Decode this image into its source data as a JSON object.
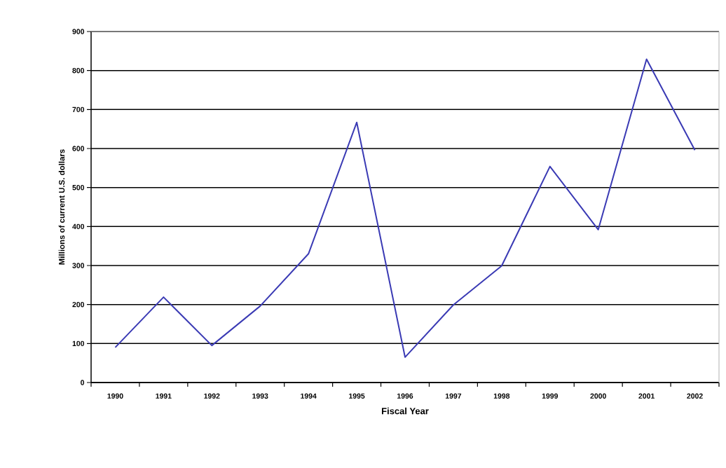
{
  "chart_data": {
    "type": "line",
    "xlabel": "Fiscal Year",
    "ylabel": "Millions of current U.S. dollars",
    "categories": [
      "1990",
      "1991",
      "1992",
      "1993",
      "1994",
      "1995",
      "1996",
      "1997",
      "1998",
      "1999",
      "2000",
      "2001",
      "2002"
    ],
    "values": [
      90,
      219,
      95,
      196,
      330,
      667,
      65,
      199,
      299,
      554,
      392,
      829,
      596
    ],
    "color": "#3a3ab4",
    "ylim": [
      0,
      900
    ],
    "yticks": [
      0,
      100,
      200,
      300,
      400,
      500,
      600,
      700,
      800,
      900
    ],
    "grid": "y",
    "marker": "none",
    "line_style": "solid"
  }
}
